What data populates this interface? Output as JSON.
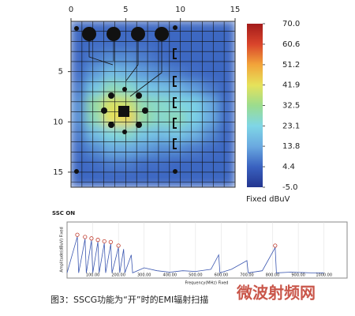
{
  "chart_data": [
    {
      "type": "heatmap",
      "xlim": [
        0,
        15
      ],
      "ylim": [
        0,
        16.5
      ],
      "xticks": [
        0,
        5,
        10,
        15
      ],
      "yticks": [
        5,
        10,
        15
      ],
      "clim": [
        -5,
        70
      ],
      "colorscale": [
        "#23358f",
        "#3a62c0",
        "#6aa9e0",
        "#7fd6e6",
        "#9bdc8e",
        "#e6e25a",
        "#f2a43a",
        "#d9442b",
        "#a31b1b"
      ],
      "colorbar_ticks": [
        {
          "value": 70,
          "label": "70.0"
        },
        60.6,
        51.2,
        41.9,
        32.5,
        23.1,
        13.8,
        4.4,
        {
          "value": -5,
          "label": "-5.0"
        }
      ],
      "colorbar_label": "Fixed dBuV",
      "z": [
        [
          5,
          5,
          5,
          5,
          5,
          5,
          5,
          5,
          5,
          5
        ],
        [
          5,
          6,
          6,
          6,
          6,
          5,
          5,
          5,
          5,
          5
        ],
        [
          5,
          8,
          10,
          10,
          8,
          6,
          5,
          5,
          5,
          5
        ],
        [
          6,
          12,
          18,
          16,
          12,
          10,
          8,
          6,
          5,
          5
        ],
        [
          8,
          20,
          28,
          26,
          20,
          18,
          16,
          12,
          8,
          5
        ],
        [
          10,
          30,
          40,
          38,
          28,
          26,
          24,
          22,
          14,
          6
        ],
        [
          10,
          28,
          42,
          44,
          30,
          26,
          28,
          22,
          14,
          6
        ],
        [
          8,
          18,
          24,
          26,
          20,
          18,
          20,
          16,
          10,
          5
        ],
        [
          6,
          10,
          14,
          14,
          12,
          10,
          10,
          8,
          6,
          5
        ],
        [
          5,
          6,
          8,
          8,
          6,
          6,
          5,
          5,
          5,
          5
        ],
        [
          5,
          5,
          5,
          5,
          5,
          5,
          5,
          5,
          5,
          5
        ]
      ]
    },
    {
      "type": "line",
      "title": "SSC ON",
      "x_label": "Frequency(MHz) Fixed",
      "y_label": "Amplitude(dBuV) Fixed",
      "color": "#3a56b0",
      "x": [
        0,
        40,
        45,
        70,
        75,
        95,
        100,
        120,
        125,
        145,
        150,
        170,
        175,
        200,
        205,
        220,
        225,
        250,
        255,
        300,
        350,
        400,
        450,
        500,
        560,
        590,
        595,
        640,
        700,
        705,
        760,
        810,
        815,
        870,
        950,
        1000
      ],
      "values": [
        5,
        55,
        5,
        52,
        5,
        50,
        5,
        48,
        5,
        46,
        5,
        45,
        5,
        40,
        5,
        38,
        5,
        30,
        5,
        12,
        8,
        6,
        8,
        7,
        10,
        30,
        5,
        10,
        22,
        5,
        8,
        40,
        5,
        6,
        5,
        5
      ],
      "markers": {
        "color": "#c0392b",
        "x": [
          40,
          70,
          95,
          120,
          145,
          170,
          200,
          810
        ],
        "values": [
          55,
          52,
          50,
          48,
          46,
          45,
          40,
          40
        ]
      },
      "xlim": [
        0,
        1090
      ],
      "ylim": [
        0,
        70
      ],
      "xticks": [
        {
          "value": 100,
          "label": "100.00"
        },
        {
          "value": 200,
          "label": "200.00"
        },
        {
          "value": 300,
          "label": "300.00"
        },
        {
          "value": 400,
          "label": "400.00"
        },
        {
          "value": 500,
          "label": "500.00"
        },
        {
          "value": 600,
          "label": "600.00"
        },
        {
          "value": 700,
          "label": "700.00"
        },
        {
          "value": 800,
          "label": "800.00"
        },
        {
          "value": 900,
          "label": "900.00"
        },
        {
          "value": 1000,
          "label": "1000.00"
        }
      ]
    }
  ],
  "caption": "图3：SSCG功能为“开”时的EMI辐射扫描",
  "watermark": "微波射频网"
}
